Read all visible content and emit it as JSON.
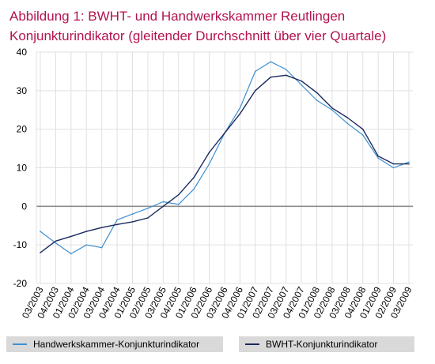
{
  "title": {
    "line1": "Abbildung 1: BWHT- und Handwerkskammer  Reutlingen",
    "line2": "Konjunkturindikator (gleitender Durchschnitt über vier Quartale)"
  },
  "colors": {
    "title": "#b3124f",
    "series_light": "#3d8fd0",
    "series_dark": "#1a2a5e",
    "grid": "#e0e0e0",
    "zero_line": "#8c8c8c",
    "legend_bg": "#d9d9d9"
  },
  "chart_data": {
    "type": "line",
    "title": "Abbildung 1: BWHT- und Handwerkskammer  Reutlingen Konjunkturindikator (gleitender Durchschnitt über vier Quartale)",
    "xlabel": "",
    "ylabel": "",
    "ylim": [
      -20,
      40
    ],
    "yticks": [
      40,
      30,
      20,
      10,
      0,
      -10,
      -20
    ],
    "grid": true,
    "legend_position": "bottom",
    "categories": [
      "03/2003",
      "04/2003",
      "01/2004",
      "02/2004",
      "03/2004",
      "04/2004",
      "01/2005",
      "02/2005",
      "03/2005",
      "04/2005",
      "01/2006",
      "02/2006",
      "03/2006",
      "04/2006",
      "01/2007",
      "02/2007",
      "03/2007",
      "04/2007",
      "01/2008",
      "02/2008",
      "03/2008",
      "04/2008",
      "01/2009",
      "02/2009",
      "03/2009"
    ],
    "series": [
      {
        "name": "Handwerkskammer-Konjunkturindikator",
        "color": "#3d8fd0",
        "values": [
          -6.5,
          -9.5,
          -12.3,
          -10,
          -10.7,
          -3.5,
          -2,
          -0.5,
          1.2,
          0.5,
          4.5,
          11,
          19,
          25.5,
          35,
          37.5,
          35.5,
          31.5,
          27.5,
          25,
          21.5,
          18.5,
          12.5,
          10,
          11.5
        ]
      },
      {
        "name": "BWHT-Konjunkturindikator",
        "color": "#1a2a5e",
        "values": [
          -12,
          -9,
          -7.8,
          -6.5,
          -5.5,
          -4.7,
          -4,
          -3,
          0,
          3,
          7.5,
          14,
          19,
          24,
          30,
          33.5,
          34,
          32.5,
          29.5,
          25.5,
          23,
          20,
          13,
          11,
          11
        ]
      }
    ]
  }
}
